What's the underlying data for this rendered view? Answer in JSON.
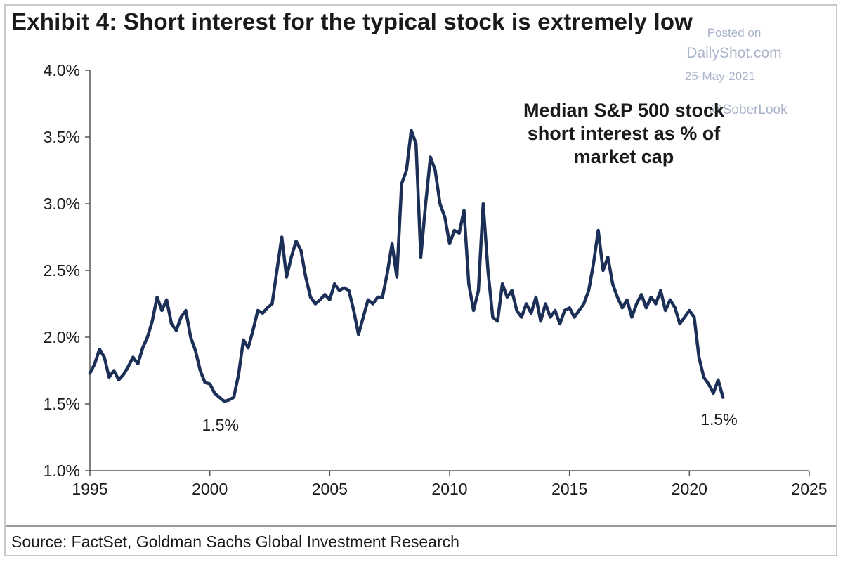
{
  "title": "Exhibit 4: Short interest for the typical stock is extremely low",
  "source": "Source: FactSet, Goldman Sachs Global Investment Research",
  "watermark": {
    "line1": "Posted on",
    "line2": "DailyShot.com",
    "line3": "25-May-2021",
    "line4": "@SoberLook"
  },
  "colors": {
    "line": "#1c2f57",
    "axis": "#555555",
    "text": "#1a1a1a"
  },
  "chart_data": {
    "type": "line",
    "title": "",
    "xlabel": "",
    "ylabel": "",
    "xlim": [
      1995,
      2025
    ],
    "ylim": [
      1.0,
      4.0
    ],
    "x_ticks": [
      1995,
      2000,
      2005,
      2010,
      2015,
      2020,
      2025
    ],
    "x_tick_labels": [
      "1995",
      "2000",
      "2005",
      "2010",
      "2015",
      "2020",
      "2025"
    ],
    "y_ticks": [
      1.0,
      1.5,
      2.0,
      2.5,
      3.0,
      3.5,
      4.0
    ],
    "y_tick_labels": [
      "1.0%",
      "1.5%",
      "2.0%",
      "2.5%",
      "3.0%",
      "3.5%",
      "4.0%"
    ],
    "grid": false,
    "legend": "none",
    "series": [
      {
        "name": "Median S&P 500 stock short interest as % of market cap",
        "x": [
          1995.0,
          1995.2,
          1995.4,
          1995.6,
          1995.8,
          1996.0,
          1996.2,
          1996.4,
          1996.6,
          1996.8,
          1997.0,
          1997.2,
          1997.4,
          1997.6,
          1997.8,
          1998.0,
          1998.2,
          1998.4,
          1998.6,
          1998.8,
          1999.0,
          1999.2,
          1999.4,
          1999.6,
          1999.8,
          2000.0,
          2000.2,
          2000.4,
          2000.6,
          2000.8,
          2001.0,
          2001.2,
          2001.4,
          2001.6,
          2001.8,
          2002.0,
          2002.2,
          2002.4,
          2002.6,
          2002.8,
          2003.0,
          2003.2,
          2003.4,
          2003.6,
          2003.8,
          2004.0,
          2004.2,
          2004.4,
          2004.6,
          2004.8,
          2005.0,
          2005.2,
          2005.4,
          2005.6,
          2005.8,
          2006.0,
          2006.2,
          2006.4,
          2006.6,
          2006.8,
          2007.0,
          2007.2,
          2007.4,
          2007.6,
          2007.8,
          2008.0,
          2008.2,
          2008.4,
          2008.6,
          2008.8,
          2009.0,
          2009.2,
          2009.4,
          2009.6,
          2009.8,
          2010.0,
          2010.2,
          2010.4,
          2010.6,
          2010.8,
          2011.0,
          2011.2,
          2011.4,
          2011.6,
          2011.8,
          2012.0,
          2012.2,
          2012.4,
          2012.6,
          2012.8,
          2013.0,
          2013.2,
          2013.4,
          2013.6,
          2013.8,
          2014.0,
          2014.2,
          2014.4,
          2014.6,
          2014.8,
          2015.0,
          2015.2,
          2015.4,
          2015.6,
          2015.8,
          2016.0,
          2016.2,
          2016.4,
          2016.6,
          2016.8,
          2017.0,
          2017.2,
          2017.4,
          2017.6,
          2017.8,
          2018.0,
          2018.2,
          2018.4,
          2018.6,
          2018.8,
          2019.0,
          2019.2,
          2019.4,
          2019.6,
          2019.8,
          2020.0,
          2020.2,
          2020.4,
          2020.6,
          2020.8,
          2021.0,
          2021.2,
          2021.4
        ],
        "y": [
          1.73,
          1.8,
          1.91,
          1.85,
          1.7,
          1.75,
          1.68,
          1.72,
          1.78,
          1.85,
          1.8,
          1.92,
          2.0,
          2.12,
          2.3,
          2.2,
          2.28,
          2.1,
          2.05,
          2.15,
          2.2,
          2.0,
          1.9,
          1.75,
          1.66,
          1.65,
          1.58,
          1.55,
          1.52,
          1.53,
          1.55,
          1.72,
          1.98,
          1.92,
          2.05,
          2.2,
          2.18,
          2.22,
          2.25,
          2.5,
          2.75,
          2.45,
          2.6,
          2.72,
          2.65,
          2.45,
          2.3,
          2.25,
          2.28,
          2.32,
          2.28,
          2.4,
          2.35,
          2.37,
          2.35,
          2.2,
          2.02,
          2.15,
          2.28,
          2.25,
          2.3,
          2.3,
          2.48,
          2.7,
          2.45,
          3.15,
          3.25,
          3.55,
          3.45,
          2.6,
          3.0,
          3.35,
          3.25,
          3.0,
          2.9,
          2.7,
          2.8,
          2.78,
          2.95,
          2.4,
          2.2,
          2.35,
          3.0,
          2.5,
          2.15,
          2.12,
          2.4,
          2.3,
          2.35,
          2.2,
          2.15,
          2.25,
          2.18,
          2.3,
          2.12,
          2.25,
          2.15,
          2.2,
          2.1,
          2.2,
          2.22,
          2.15,
          2.2,
          2.25,
          2.35,
          2.55,
          2.8,
          2.5,
          2.6,
          2.4,
          2.3,
          2.22,
          2.28,
          2.15,
          2.25,
          2.32,
          2.22,
          2.3,
          2.25,
          2.35,
          2.2,
          2.28,
          2.22,
          2.1,
          2.15,
          2.2,
          2.15,
          1.85,
          1.7,
          1.65,
          1.58,
          1.68,
          1.55
        ]
      }
    ],
    "annotations": [
      {
        "text_lines": [
          "Median S&P 500 stock",
          "short interest as % of",
          "market cap"
        ]
      },
      {
        "text": "1.5%",
        "x": 2000.5,
        "y": 1.5
      },
      {
        "text": "1.5%",
        "x": 2021.0,
        "y": 1.5
      }
    ]
  }
}
